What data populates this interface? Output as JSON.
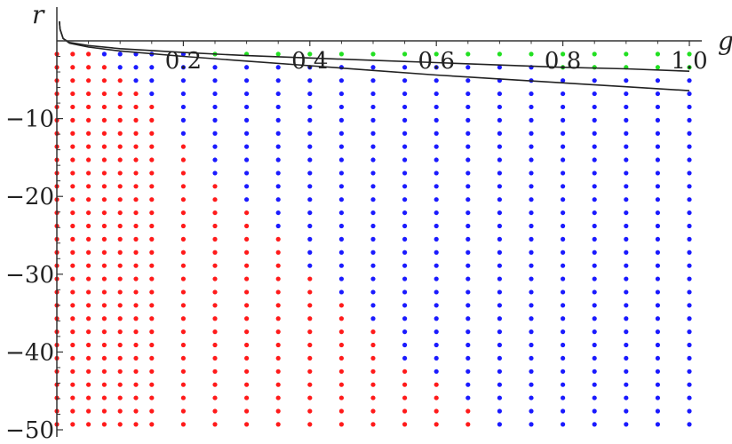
{
  "chart_data": {
    "type": "scatter",
    "xlabel": "g",
    "ylabel": "r",
    "xlim": [
      0,
      1.02
    ],
    "ylim": [
      -50,
      2.5
    ],
    "x_ticks": [
      {
        "value": 0.2,
        "label": "0.2"
      },
      {
        "value": 0.4,
        "label": "0.4"
      },
      {
        "value": 0.6,
        "label": "0.6"
      },
      {
        "value": 0.8,
        "label": "0.8"
      },
      {
        "value": 1.0,
        "label": "1.0"
      }
    ],
    "y_ticks": [
      {
        "value": -10,
        "label": "−10"
      },
      {
        "value": -20,
        "label": "−20"
      },
      {
        "value": -30,
        "label": "−30"
      },
      {
        "value": -40,
        "label": "−40"
      },
      {
        "value": -50,
        "label": "−50"
      }
    ],
    "grid": false,
    "point_grid": {
      "g_values": [
        0.0,
        0.025,
        0.05,
        0.075,
        0.1,
        0.125,
        0.15,
        0.2,
        0.25,
        0.3,
        0.35,
        0.4,
        0.45,
        0.5,
        0.55,
        0.6,
        0.65,
        0.7,
        0.75,
        0.8,
        0.85,
        0.9,
        0.95,
        1.0
      ],
      "r_min": -50,
      "r_max": -1.7,
      "r_step": 1.7
    },
    "series": [
      {
        "color": "#ff1a1a",
        "rule": "r < blue_lower(g)"
      },
      {
        "color": "#1a1aff",
        "rule": "blue_lower(g) <= r < upper_curve(g)"
      },
      {
        "color": "#22e022",
        "rule": "r >= upper_curve(g)"
      }
    ],
    "curves": [
      {
        "color": "#222222",
        "samples": [
          [
            0.005,
            1.5
          ],
          [
            0.01,
            0.3
          ],
          [
            0.02,
            -0.2
          ],
          [
            0.05,
            -0.6
          ],
          [
            0.1,
            -1.0
          ],
          [
            0.2,
            -1.5
          ],
          [
            0.3,
            -1.9
          ],
          [
            0.4,
            -2.2
          ],
          [
            0.5,
            -2.5
          ],
          [
            0.6,
            -2.8
          ],
          [
            0.7,
            -3.1
          ],
          [
            0.8,
            -3.4
          ],
          [
            0.9,
            -3.6
          ],
          [
            1.0,
            -3.9
          ]
        ]
      },
      {
        "color": "#222222",
        "samples": [
          [
            0.005,
            1.5
          ],
          [
            0.01,
            0.3
          ],
          [
            0.02,
            -0.3
          ],
          [
            0.05,
            -0.8
          ],
          [
            0.1,
            -1.3
          ],
          [
            0.2,
            -2.0
          ],
          [
            0.3,
            -2.6
          ],
          [
            0.4,
            -3.2
          ],
          [
            0.5,
            -3.8
          ],
          [
            0.6,
            -4.4
          ],
          [
            0.7,
            -4.9
          ],
          [
            0.8,
            -5.4
          ],
          [
            0.9,
            -5.9
          ],
          [
            1.0,
            -6.4
          ]
        ]
      }
    ],
    "blue_lower_samples": [
      [
        0.0,
        0
      ],
      [
        0.05,
        -1.5
      ],
      [
        0.1,
        -5
      ],
      [
        0.15,
        -8
      ],
      [
        0.2,
        -13
      ],
      [
        0.25,
        -17
      ],
      [
        0.3,
        -21
      ],
      [
        0.35,
        -25
      ],
      [
        0.4,
        -29
      ],
      [
        0.45,
        -33
      ],
      [
        0.5,
        -37
      ],
      [
        0.55,
        -41
      ],
      [
        0.6,
        -44
      ],
      [
        0.65,
        -47
      ],
      [
        0.7,
        -50
      ],
      [
        1.0,
        -51
      ]
    ]
  }
}
